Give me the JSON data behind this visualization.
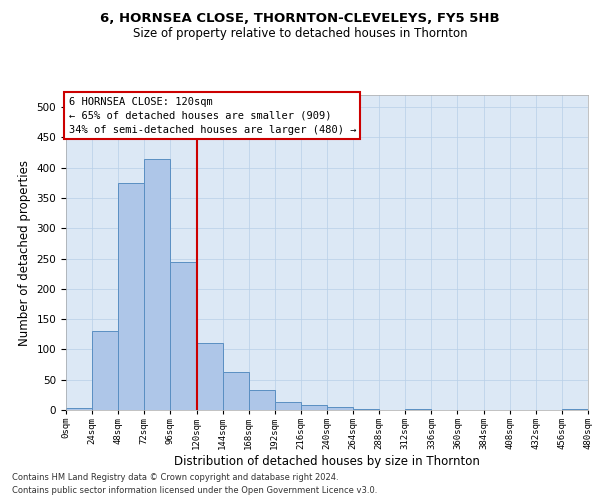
{
  "title_line1": "6, HORNSEA CLOSE, THORNTON-CLEVELEYS, FY5 5HB",
  "title_line2": "Size of property relative to detached houses in Thornton",
  "xlabel": "Distribution of detached houses by size in Thornton",
  "ylabel": "Number of detached properties",
  "bar_values": [
    3,
    130,
    375,
    415,
    245,
    110,
    63,
    33,
    13,
    8,
    5,
    1,
    0,
    1,
    0,
    0,
    0,
    0,
    0,
    2
  ],
  "bar_color": "#aec6e8",
  "bar_edge_color": "#5a8fc2",
  "background_color": "#ffffff",
  "plot_bg_color": "#dce8f5",
  "grid_color": "#b8cfe8",
  "marker_value": 120,
  "marker_color": "#cc0000",
  "annotation_title": "6 HORNSEA CLOSE: 120sqm",
  "annotation_line1": "← 65% of detached houses are smaller (909)",
  "annotation_line2": "34% of semi-detached houses are larger (480) →",
  "annotation_box_color": "#ffffff",
  "annotation_border_color": "#cc0000",
  "ylim": [
    0,
    520
  ],
  "yticks": [
    0,
    50,
    100,
    150,
    200,
    250,
    300,
    350,
    400,
    450,
    500
  ],
  "bin_width": 24,
  "n_bars": 20,
  "footnote_line1": "Contains HM Land Registry data © Crown copyright and database right 2024.",
  "footnote_line2": "Contains public sector information licensed under the Open Government Licence v3.0."
}
